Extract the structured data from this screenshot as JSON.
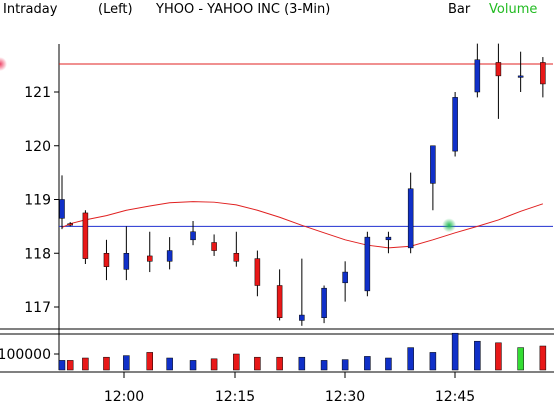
{
  "header": {
    "mode": "Intraday",
    "side": "(Left)",
    "title": "YHOO - YAHOO INC  (3-Min)",
    "bar_label": "Bar",
    "volume_label": "Volume"
  },
  "colors": {
    "up": "#1030c8",
    "down": "#e81818",
    "ma": "#e02020",
    "hline_red": "#e02020",
    "hline_blue": "#2030d0",
    "vol_highlight": "#33dd33",
    "volume_label": "#22bb22"
  },
  "chart_data": {
    "type": "candlestick",
    "interval": "3-Min",
    "x_ticks": [
      "12:00",
      "12:15",
      "12:30",
      "12:45"
    ],
    "y_ticks": [
      117,
      118,
      119,
      120,
      121
    ],
    "ylim": [
      116.65,
      122.0
    ],
    "volume_tick": "100000",
    "volume_ylim": [
      0,
      200000
    ],
    "reference_lines": [
      {
        "name": "red",
        "value": 121.52
      },
      {
        "name": "blue",
        "value": 118.5
      }
    ],
    "markers": [
      {
        "index": 19,
        "value": 118.52,
        "color": "#22bb55"
      },
      {
        "index": 27,
        "value": 121.52,
        "color": "#ee4466"
      }
    ],
    "candles": [
      {
        "o": 118.65,
        "h": 119.45,
        "l": 118.45,
        "c": 119.0,
        "v": 60000
      },
      {
        "o": 118.55,
        "h": 118.58,
        "l": 118.5,
        "c": 118.53,
        "v": 60000
      },
      {
        "o": 118.75,
        "h": 118.8,
        "l": 117.8,
        "c": 117.9,
        "v": 75000
      },
      {
        "o": 118.0,
        "h": 118.25,
        "l": 117.5,
        "c": 117.75,
        "v": 80000
      },
      {
        "o": 117.7,
        "h": 118.5,
        "l": 117.5,
        "c": 118.0,
        "v": 90000
      },
      {
        "o": 117.95,
        "h": 118.4,
        "l": 117.65,
        "c": 117.85,
        "v": 110000
      },
      {
        "o": 117.85,
        "h": 118.3,
        "l": 117.7,
        "c": 118.05,
        "v": 75000
      },
      {
        "o": 118.25,
        "h": 118.6,
        "l": 118.15,
        "c": 118.4,
        "v": 60000
      },
      {
        "o": 118.2,
        "h": 118.35,
        "l": 117.95,
        "c": 118.05,
        "v": 70000
      },
      {
        "o": 118.0,
        "h": 118.4,
        "l": 117.75,
        "c": 117.85,
        "v": 100000
      },
      {
        "o": 117.9,
        "h": 118.05,
        "l": 117.2,
        "c": 117.4,
        "v": 80000
      },
      {
        "o": 117.4,
        "h": 117.7,
        "l": 116.75,
        "c": 116.8,
        "v": 80000
      },
      {
        "o": 116.75,
        "h": 117.9,
        "l": 116.65,
        "c": 116.85,
        "v": 80000
      },
      {
        "o": 116.8,
        "h": 117.4,
        "l": 116.7,
        "c": 117.35,
        "v": 60000
      },
      {
        "o": 117.45,
        "h": 117.85,
        "l": 117.1,
        "c": 117.65,
        "v": 65000
      },
      {
        "o": 117.3,
        "h": 118.4,
        "l": 117.2,
        "c": 118.3,
        "v": 85000
      },
      {
        "o": 118.25,
        "h": 118.4,
        "l": 118.0,
        "c": 118.3,
        "v": 75000
      },
      {
        "o": 118.1,
        "h": 119.5,
        "l": 118.0,
        "c": 119.2,
        "v": 140000
      },
      {
        "o": 119.3,
        "h": 120.0,
        "l": 118.8,
        "c": 120.0,
        "v": 110000
      },
      {
        "o": 119.9,
        "h": 121.0,
        "l": 119.8,
        "c": 120.9,
        "v": 230000
      },
      {
        "o": 121.0,
        "h": 121.9,
        "l": 120.9,
        "c": 121.6,
        "v": 180000
      },
      {
        "o": 121.55,
        "h": 121.9,
        "l": 120.5,
        "c": 121.3,
        "v": 170000
      },
      {
        "o": 121.3,
        "h": 121.75,
        "l": 121.0,
        "c": 121.3,
        "v": 140000
      },
      {
        "o": 121.55,
        "h": 121.65,
        "l": 120.9,
        "c": 121.15,
        "v": 150000
      }
    ],
    "candle_x_index": [
      0,
      0.7,
      2,
      3.8,
      5.5,
      7.5,
      9.2,
      11.2,
      13,
      14.9,
      16.7,
      18.6,
      20.5,
      22.4,
      24.2,
      26.1,
      27.9,
      29.8,
      31.7,
      33.6,
      35.5,
      37.3,
      39.2,
      41.1
    ],
    "moving_average": [
      118.48,
      118.55,
      118.62,
      118.7,
      118.8,
      118.88,
      118.94,
      118.96,
      118.95,
      118.9,
      118.8,
      118.67,
      118.52,
      118.38,
      118.25,
      118.15,
      118.1,
      118.13,
      118.25,
      118.38,
      118.5,
      118.62,
      118.78,
      118.92
    ]
  }
}
